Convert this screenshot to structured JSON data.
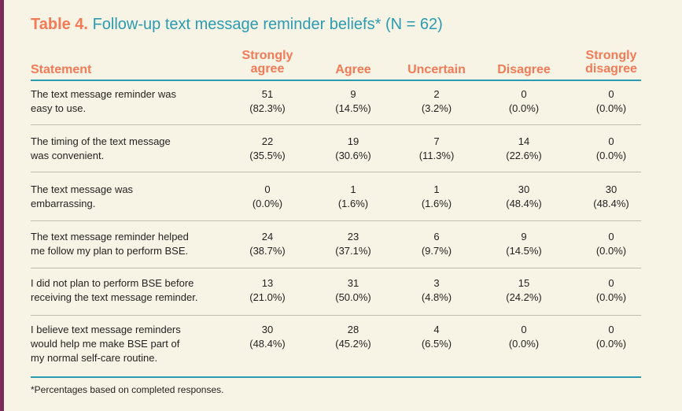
{
  "table": {
    "label": "Table 4.",
    "title": "Follow-up text message reminder beliefs* (N = 62)",
    "headers": {
      "statement": "Statement",
      "strongly_agree": [
        "Strongly",
        "agree"
      ],
      "agree": "Agree",
      "uncertain": "Uncertain",
      "disagree": "Disagree",
      "strongly_disagree": [
        "Strongly",
        "disagree"
      ]
    },
    "rows": [
      {
        "statement": [
          "The text message reminder was",
          "easy to use."
        ],
        "cells": [
          [
            "51",
            "(82.3%)"
          ],
          [
            "9",
            "(14.5%)"
          ],
          [
            "2",
            "(3.2%)"
          ],
          [
            "0",
            "(0.0%)"
          ],
          [
            "0",
            "(0.0%)"
          ]
        ]
      },
      {
        "statement": [
          "The timing of the text message",
          "was convenient."
        ],
        "cells": [
          [
            "22",
            "(35.5%)"
          ],
          [
            "19",
            "(30.6%)"
          ],
          [
            "7",
            "(11.3%)"
          ],
          [
            "14",
            "(22.6%)"
          ],
          [
            "0",
            "(0.0%)"
          ]
        ]
      },
      {
        "statement": [
          "The text message was",
          "embarrassing."
        ],
        "cells": [
          [
            "0",
            "(0.0%)"
          ],
          [
            "1",
            "(1.6%)"
          ],
          [
            "1",
            "(1.6%)"
          ],
          [
            "30",
            "(48.4%)"
          ],
          [
            "30",
            "(48.4%)"
          ]
        ]
      },
      {
        "statement": [
          "The text message reminder helped",
          "me follow my plan to perform BSE."
        ],
        "cells": [
          [
            "24",
            "(38.7%)"
          ],
          [
            "23",
            "(37.1%)"
          ],
          [
            "6",
            "(9.7%)"
          ],
          [
            "9",
            "(14.5%)"
          ],
          [
            "0",
            "(0.0%)"
          ]
        ]
      },
      {
        "statement": [
          "I did not plan to perform BSE before",
          "receiving the text message reminder."
        ],
        "cells": [
          [
            "13",
            "(21.0%)"
          ],
          [
            "31",
            "(50.0%)"
          ],
          [
            "3",
            "(4.8%)"
          ],
          [
            "15",
            "(24.2%)"
          ],
          [
            "0",
            "(0.0%)"
          ]
        ]
      },
      {
        "statement": [
          "I believe text message reminders",
          "would help me make BSE part of",
          "my normal self-care routine."
        ],
        "cells": [
          [
            "30",
            "(48.4%)"
          ],
          [
            "28",
            "(45.2%)"
          ],
          [
            "4",
            "(6.5%)"
          ],
          [
            "0",
            "(0.0%)"
          ],
          [
            "0",
            "(0.0%)"
          ]
        ]
      }
    ],
    "footnote": "*Percentages based on completed responses."
  },
  "colors": {
    "background": "#f7f4e5",
    "accent_orange": "#f27a57",
    "accent_teal": "#2a9bb0",
    "border_plum": "#7b2a59"
  }
}
